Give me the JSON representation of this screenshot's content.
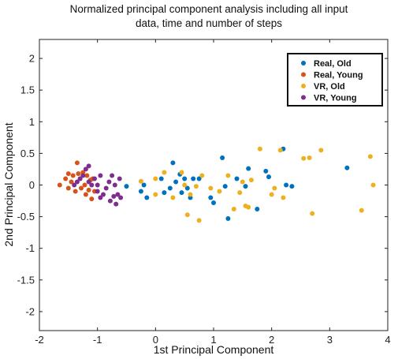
{
  "chart_data": {
    "type": "scatter",
    "title_line1": "Normalized principal component analysis including all input",
    "title_line2": "data, time and number of steps",
    "xlabel": "1st Principal Component",
    "ylabel": "2nd Principal Component",
    "xlim": [
      -2,
      4
    ],
    "ylim": [
      -2.3,
      2.3
    ],
    "xticks": [
      -2,
      -1,
      0,
      1,
      2,
      3,
      4
    ],
    "yticks": [
      -2,
      -1.5,
      -1,
      -0.5,
      0,
      0.5,
      1,
      1.5,
      2
    ],
    "grid": false,
    "legend_position": "top-right",
    "series": [
      {
        "name": "Real, Old",
        "color": "#0072BD",
        "points": [
          [
            -0.5,
            -0.02
          ],
          [
            -0.25,
            -0.1
          ],
          [
            -0.2,
            0.0
          ],
          [
            -0.15,
            -0.2
          ],
          [
            0.1,
            0.1
          ],
          [
            0.15,
            -0.12
          ],
          [
            0.25,
            -0.05
          ],
          [
            0.3,
            0.35
          ],
          [
            0.35,
            0.05
          ],
          [
            0.42,
            0.17
          ],
          [
            0.45,
            -0.12
          ],
          [
            0.5,
            0.1
          ],
          [
            0.55,
            -0.05
          ],
          [
            0.6,
            -0.2
          ],
          [
            0.65,
            0.1
          ],
          [
            0.75,
            0.1
          ],
          [
            0.95,
            -0.2
          ],
          [
            1.0,
            -0.28
          ],
          [
            1.15,
            0.43
          ],
          [
            1.2,
            -0.02
          ],
          [
            1.25,
            -0.53
          ],
          [
            1.4,
            0.1
          ],
          [
            1.55,
            -0.02
          ],
          [
            1.6,
            0.26
          ],
          [
            1.75,
            -0.38
          ],
          [
            1.9,
            0.22
          ],
          [
            1.95,
            0.13
          ],
          [
            2.2,
            0.57
          ],
          [
            2.25,
            0.0
          ],
          [
            2.35,
            -0.02
          ],
          [
            3.3,
            0.27
          ]
        ]
      },
      {
        "name": "Real, Young",
        "color": "#D95319",
        "points": [
          [
            -1.65,
            0.0
          ],
          [
            -1.55,
            0.1
          ],
          [
            -1.5,
            0.18
          ],
          [
            -1.5,
            -0.05
          ],
          [
            -1.45,
            0.05
          ],
          [
            -1.42,
            0.15
          ],
          [
            -1.38,
            -0.1
          ],
          [
            -1.35,
            0.35
          ],
          [
            -1.33,
            0.18
          ],
          [
            -1.3,
            0.1
          ],
          [
            -1.28,
            -0.05
          ],
          [
            -1.25,
            0.2
          ],
          [
            -1.22,
            0.0
          ],
          [
            -1.2,
            -0.15
          ],
          [
            -1.18,
            0.15
          ],
          [
            -1.15,
            -0.08
          ],
          [
            -1.12,
            0.08
          ],
          [
            -1.1,
            -0.22
          ],
          [
            -1.08,
            0.1
          ],
          [
            -1.05,
            -0.1
          ]
        ]
      },
      {
        "name": "VR, Old",
        "color": "#EDB120",
        "points": [
          [
            -0.25,
            0.06
          ],
          [
            0.0,
            0.1
          ],
          [
            0.0,
            -0.15
          ],
          [
            0.15,
            0.2
          ],
          [
            0.3,
            -0.2
          ],
          [
            0.45,
            0.2
          ],
          [
            0.5,
            0.0
          ],
          [
            0.55,
            -0.47
          ],
          [
            0.6,
            -0.15
          ],
          [
            0.7,
            -0.02
          ],
          [
            0.75,
            -0.56
          ],
          [
            0.8,
            0.15
          ],
          [
            0.95,
            -0.05
          ],
          [
            1.1,
            -0.1
          ],
          [
            1.25,
            0.15
          ],
          [
            1.35,
            -0.38
          ],
          [
            1.45,
            -0.12
          ],
          [
            1.5,
            0.05
          ],
          [
            1.55,
            -0.33
          ],
          [
            1.6,
            -0.35
          ],
          [
            1.65,
            0.08
          ],
          [
            1.8,
            0.57
          ],
          [
            2.0,
            -0.15
          ],
          [
            2.05,
            -0.05
          ],
          [
            2.15,
            0.55
          ],
          [
            2.55,
            0.42
          ],
          [
            2.65,
            0.43
          ],
          [
            2.7,
            -0.45
          ],
          [
            2.85,
            0.55
          ],
          [
            3.55,
            -0.4
          ],
          [
            3.7,
            0.45
          ],
          [
            3.75,
            0.0
          ],
          [
            2.2,
            -0.2
          ]
        ]
      },
      {
        "name": "VR, Young",
        "color": "#7E2F8E",
        "points": [
          [
            -1.4,
            0.0
          ],
          [
            -1.35,
            0.05
          ],
          [
            -1.3,
            0.1
          ],
          [
            -1.25,
            0.15
          ],
          [
            -1.2,
            0.25
          ],
          [
            -1.15,
            0.3
          ],
          [
            -1.15,
            0.05
          ],
          [
            -1.1,
            0.0
          ],
          [
            -1.05,
            0.1
          ],
          [
            -1.0,
            -0.1
          ],
          [
            -0.95,
            -0.2
          ],
          [
            -0.9,
            -0.15
          ],
          [
            -0.85,
            -0.05
          ],
          [
            -0.8,
            0.05
          ],
          [
            -0.78,
            -0.25
          ],
          [
            -0.75,
            0.15
          ],
          [
            -0.72,
            -0.18
          ],
          [
            -0.7,
            0.0
          ],
          [
            -0.68,
            -0.3
          ],
          [
            -0.65,
            -0.15
          ],
          [
            -0.62,
            0.1
          ],
          [
            -0.6,
            -0.2
          ],
          [
            -0.95,
            0.15
          ],
          [
            -1.0,
            0.0
          ]
        ]
      }
    ]
  }
}
